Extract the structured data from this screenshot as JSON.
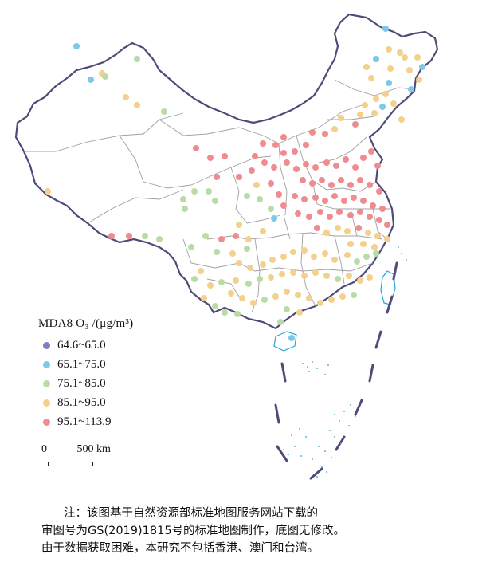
{
  "legend": {
    "title": "MDA8 O₃ /(μg/m³)",
    "items": [
      {
        "label": "64.6~65.0",
        "color": "#7b80c6"
      },
      {
        "label": "65.1~75.0",
        "color": "#7ec9ea"
      },
      {
        "label": "75.1~85.0",
        "color": "#b9dca7"
      },
      {
        "label": "85.1~95.0",
        "color": "#f3d08b"
      },
      {
        "label": "95.1~113.9",
        "color": "#ef8c90"
      }
    ]
  },
  "scale_bar": {
    "zero": "0",
    "distance": "500 km"
  },
  "note": [
    "注：该图基于自然资源部标准地图服务网站下载的",
    "审图号为GS(2019)1815号的标准地图制作，底图无修改。",
    "由于数据获取困难，本研究不包括香港、澳门和台湾。"
  ],
  "colors": {
    "border": "#55507a",
    "province": "#9a9a9a",
    "coast": "#29a3d6"
  }
}
